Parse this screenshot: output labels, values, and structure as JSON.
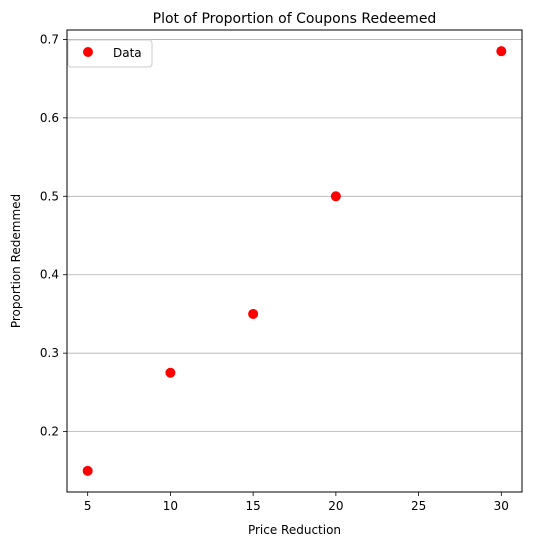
{
  "chart_data": {
    "type": "scatter",
    "title": "Plot of Proportion of Coupons Redeemed",
    "xlabel": "Price Reduction",
    "ylabel": "Proportion Redemmed",
    "xlim": [
      3.75,
      31.25
    ],
    "ylim": [
      0.123,
      0.712
    ],
    "xticks": [
      5,
      10,
      15,
      20,
      25,
      30
    ],
    "yticks": [
      0.2,
      0.3,
      0.4,
      0.5,
      0.6,
      0.7
    ],
    "grid": "horizontal",
    "legend_position": "top-left",
    "series": [
      {
        "name": "Data",
        "color": "#ff0000",
        "marker": "circle",
        "x": [
          5,
          10,
          15,
          20,
          30
        ],
        "y": [
          0.15,
          0.275,
          0.35,
          0.5,
          0.685
        ]
      }
    ]
  }
}
